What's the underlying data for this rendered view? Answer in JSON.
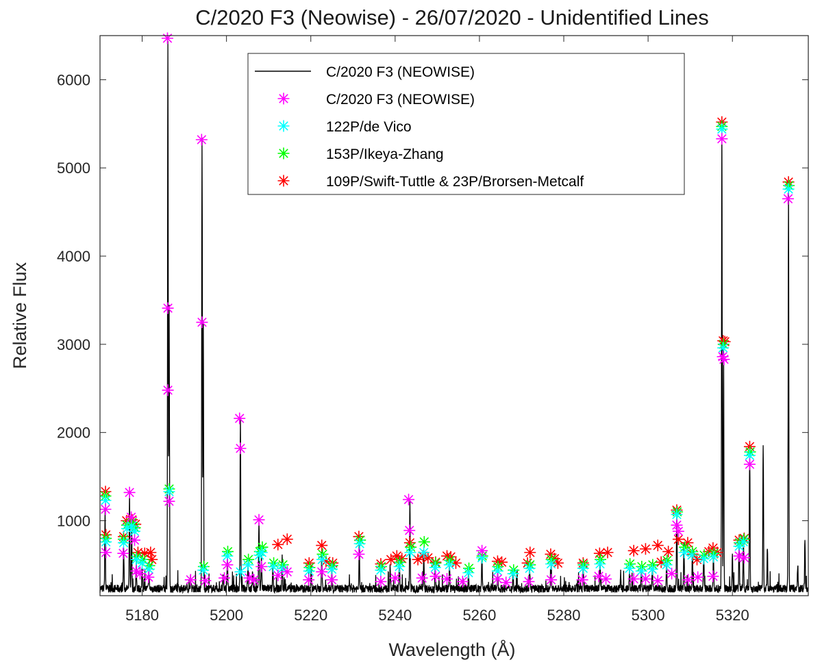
{
  "chart_data": {
    "type": "line",
    "title": "C/2020 F3 (Neowise) - 26/07/2020 - Unidentified Lines",
    "xlabel": "Wavelength (Å)",
    "ylabel": "Relative Flux",
    "xlim": [
      5170,
      5338
    ],
    "ylim": [
      150,
      6500
    ],
    "xticks": [
      5180,
      5200,
      5220,
      5240,
      5260,
      5280,
      5300,
      5320
    ],
    "yticks": [
      1000,
      2000,
      3000,
      4000,
      5000,
      6000
    ],
    "legend_position": "top-center",
    "spectrum": {
      "name": "C/2020 F3 (NEOWISE)",
      "color": "#000000",
      "baseline": 230,
      "peaks": [
        [
          5171.2,
          1100
        ],
        [
          5175.6,
          700
        ],
        [
          5177.0,
          1300
        ],
        [
          5177.5,
          900
        ],
        [
          5178.6,
          560
        ],
        [
          5180.0,
          460
        ],
        [
          5181.6,
          380
        ],
        [
          5186.1,
          6470
        ],
        [
          5186.4,
          3400
        ],
        [
          5191.5,
          340
        ],
        [
          5194.2,
          5310
        ],
        [
          5194.5,
          3240
        ],
        [
          5199.2,
          360
        ],
        [
          5200.2,
          620
        ],
        [
          5203.3,
          2150
        ],
        [
          5205.1,
          520
        ],
        [
          5206.2,
          430
        ],
        [
          5207.7,
          1000
        ],
        [
          5208.3,
          620
        ],
        [
          5211.0,
          500
        ],
        [
          5213.2,
          600
        ],
        [
          5220.1,
          460
        ],
        [
          5222.6,
          640
        ],
        [
          5225.0,
          420
        ],
        [
          5231.5,
          780
        ],
        [
          5238.8,
          460
        ],
        [
          5241.0,
          560
        ],
        [
          5243.5,
          1230
        ],
        [
          5246.8,
          650
        ],
        [
          5249.5,
          520
        ],
        [
          5252.9,
          560
        ],
        [
          5257.4,
          440
        ],
        [
          5260.6,
          610
        ],
        [
          5264.3,
          480
        ],
        [
          5268.0,
          420
        ],
        [
          5271.9,
          480
        ],
        [
          5277.0,
          560
        ],
        [
          5284.6,
          480
        ],
        [
          5288.6,
          560
        ],
        [
          5293.5,
          420
        ],
        [
          5295.6,
          460
        ],
        [
          5298.4,
          470
        ],
        [
          5301.0,
          520
        ],
        [
          5304.4,
          560
        ],
        [
          5306.8,
          1100
        ],
        [
          5308.5,
          760
        ],
        [
          5310.5,
          640
        ],
        [
          5313.2,
          620
        ],
        [
          5315.5,
          640
        ],
        [
          5317.5,
          5510
        ],
        [
          5317.9,
          3040
        ],
        [
          5320.0,
          620
        ],
        [
          5321.6,
          770
        ],
        [
          5322.6,
          800
        ],
        [
          5324.1,
          1800
        ],
        [
          5327.3,
          1900
        ],
        [
          5328.3,
          720
        ],
        [
          5333.3,
          4820
        ],
        [
          5335.5,
          520
        ],
        [
          5337.2,
          800
        ]
      ]
    },
    "series": [
      {
        "name": "C/2020 F3 (NEOWISE)",
        "color": "#ff00ff",
        "points": [
          [
            5171.3,
            1130
          ],
          [
            5171.4,
            640
          ],
          [
            5175.5,
            630
          ],
          [
            5177.0,
            1320
          ],
          [
            5177.4,
            1040
          ],
          [
            5178.2,
            780
          ],
          [
            5178.6,
            430
          ],
          [
            5179.5,
            400
          ],
          [
            5181.5,
            360
          ],
          [
            5186.0,
            6470
          ],
          [
            5186.1,
            3410
          ],
          [
            5186.1,
            2480
          ],
          [
            5186.4,
            1220
          ],
          [
            5191.5,
            330
          ],
          [
            5194.1,
            5320
          ],
          [
            5194.2,
            3250
          ],
          [
            5195.0,
            320
          ],
          [
            5199.5,
            350
          ],
          [
            5200.2,
            500
          ],
          [
            5203.1,
            2160
          ],
          [
            5203.3,
            1820
          ],
          [
            5205.4,
            350
          ],
          [
            5206.5,
            330
          ],
          [
            5207.7,
            1010
          ],
          [
            5208.3,
            480
          ],
          [
            5212.2,
            380
          ],
          [
            5214.4,
            420
          ],
          [
            5219.5,
            330
          ],
          [
            5222.6,
            420
          ],
          [
            5225.0,
            330
          ],
          [
            5231.4,
            620
          ],
          [
            5236.6,
            310
          ],
          [
            5240.0,
            350
          ],
          [
            5243.2,
            1240
          ],
          [
            5243.4,
            890
          ],
          [
            5246.4,
            350
          ],
          [
            5249.6,
            370
          ],
          [
            5252.3,
            340
          ],
          [
            5256.0,
            310
          ],
          [
            5260.6,
            660
          ],
          [
            5264.3,
            340
          ],
          [
            5266.3,
            300
          ],
          [
            5271.7,
            310
          ],
          [
            5277.0,
            330
          ],
          [
            5284.4,
            330
          ],
          [
            5288.3,
            370
          ],
          [
            5290.0,
            340
          ],
          [
            5296.6,
            340
          ],
          [
            5299.4,
            340
          ],
          [
            5302.3,
            320
          ],
          [
            5305.6,
            400
          ],
          [
            5306.8,
            950
          ],
          [
            5307.2,
            880
          ],
          [
            5309.5,
            330
          ],
          [
            5311.8,
            360
          ],
          [
            5315.4,
            370
          ],
          [
            5317.5,
            5330
          ],
          [
            5317.7,
            2860
          ],
          [
            5318.0,
            2830
          ],
          [
            5321.6,
            600
          ],
          [
            5322.8,
            580
          ],
          [
            5324.1,
            1640
          ],
          [
            5333.2,
            4650
          ]
        ]
      },
      {
        "name": "122P/de Vico",
        "color": "#00ffff",
        "points": [
          [
            5171.3,
            1230
          ],
          [
            5171.4,
            760
          ],
          [
            5175.6,
            750
          ],
          [
            5176.4,
            910
          ],
          [
            5177.5,
            940
          ],
          [
            5178.2,
            880
          ],
          [
            5178.6,
            560
          ],
          [
            5180.0,
            520
          ],
          [
            5181.6,
            450
          ],
          [
            5186.4,
            1330
          ],
          [
            5194.5,
            440
          ],
          [
            5200.2,
            600
          ],
          [
            5203.3,
            420
          ],
          [
            5205.1,
            500
          ],
          [
            5207.8,
            610
          ],
          [
            5208.4,
            640
          ],
          [
            5211.1,
            480
          ],
          [
            5213.3,
            460
          ],
          [
            5219.6,
            430
          ],
          [
            5222.7,
            560
          ],
          [
            5225.0,
            450
          ],
          [
            5231.6,
            740
          ],
          [
            5236.6,
            440
          ],
          [
            5241.0,
            480
          ],
          [
            5243.6,
            640
          ],
          [
            5246.8,
            640
          ],
          [
            5249.5,
            470
          ],
          [
            5252.9,
            500
          ],
          [
            5257.4,
            410
          ],
          [
            5260.6,
            580
          ],
          [
            5264.3,
            430
          ],
          [
            5268.0,
            400
          ],
          [
            5271.9,
            460
          ],
          [
            5277.0,
            510
          ],
          [
            5284.6,
            460
          ],
          [
            5288.6,
            510
          ],
          [
            5295.6,
            460
          ],
          [
            5298.4,
            430
          ],
          [
            5301.0,
            450
          ],
          [
            5304.4,
            500
          ],
          [
            5306.8,
            1070
          ],
          [
            5308.6,
            640
          ],
          [
            5310.4,
            610
          ],
          [
            5313.2,
            570
          ],
          [
            5315.5,
            590
          ],
          [
            5317.5,
            5440
          ],
          [
            5317.8,
            2960
          ],
          [
            5321.6,
            710
          ],
          [
            5322.6,
            760
          ],
          [
            5324.1,
            1740
          ],
          [
            5333.3,
            4760
          ]
        ]
      },
      {
        "name": "153P/Ikeya-Zhang",
        "color": "#00ff00",
        "points": [
          [
            5171.3,
            1280
          ],
          [
            5171.4,
            800
          ],
          [
            5175.6,
            790
          ],
          [
            5176.4,
            950
          ],
          [
            5177.6,
            980
          ],
          [
            5178.3,
            920
          ],
          [
            5178.7,
            590
          ],
          [
            5180.1,
            560
          ],
          [
            5181.7,
            490
          ],
          [
            5186.4,
            1360
          ],
          [
            5194.6,
            480
          ],
          [
            5200.3,
            650
          ],
          [
            5205.2,
            560
          ],
          [
            5207.9,
            650
          ],
          [
            5208.5,
            700
          ],
          [
            5211.2,
            520
          ],
          [
            5213.4,
            500
          ],
          [
            5219.7,
            470
          ],
          [
            5222.8,
            620
          ],
          [
            5225.1,
            490
          ],
          [
            5231.7,
            780
          ],
          [
            5236.7,
            480
          ],
          [
            5241.1,
            530
          ],
          [
            5243.7,
            700
          ],
          [
            5246.9,
            760
          ],
          [
            5249.6,
            520
          ],
          [
            5253.0,
            550
          ],
          [
            5257.5,
            460
          ],
          [
            5260.7,
            600
          ],
          [
            5264.4,
            480
          ],
          [
            5268.1,
            440
          ],
          [
            5272.0,
            500
          ],
          [
            5277.1,
            560
          ],
          [
            5284.7,
            500
          ],
          [
            5288.7,
            560
          ],
          [
            5295.7,
            510
          ],
          [
            5298.5,
            480
          ],
          [
            5301.1,
            500
          ],
          [
            5304.5,
            550
          ],
          [
            5306.9,
            1100
          ],
          [
            5308.7,
            700
          ],
          [
            5310.5,
            650
          ],
          [
            5313.3,
            610
          ],
          [
            5315.6,
            630
          ],
          [
            5317.5,
            5470
          ],
          [
            5317.9,
            3000
          ],
          [
            5321.7,
            750
          ],
          [
            5322.7,
            790
          ],
          [
            5324.2,
            1780
          ],
          [
            5333.4,
            4800
          ]
        ]
      },
      {
        "name": "109P/Swift-Tuttle & 23P/Brorsen-Metcalf",
        "color": "#ff0000",
        "points": [
          [
            5171.3,
            1330
          ],
          [
            5171.4,
            840
          ],
          [
            5175.6,
            820
          ],
          [
            5176.3,
            1000
          ],
          [
            5177.6,
            1010
          ],
          [
            5178.4,
            960
          ],
          [
            5179.0,
            640
          ],
          [
            5180.6,
            630
          ],
          [
            5182.0,
            640
          ],
          [
            5182.3,
            560
          ],
          [
            5212.2,
            730
          ],
          [
            5214.4,
            790
          ],
          [
            5219.6,
            520
          ],
          [
            5222.6,
            720
          ],
          [
            5223.6,
            540
          ],
          [
            5225.2,
            520
          ],
          [
            5231.4,
            820
          ],
          [
            5236.6,
            510
          ],
          [
            5239.0,
            560
          ],
          [
            5240.4,
            600
          ],
          [
            5241.6,
            570
          ],
          [
            5243.5,
            750
          ],
          [
            5245.4,
            560
          ],
          [
            5246.6,
            600
          ],
          [
            5247.8,
            580
          ],
          [
            5249.6,
            530
          ],
          [
            5252.3,
            600
          ],
          [
            5253.2,
            590
          ],
          [
            5254.4,
            520
          ],
          [
            5264.3,
            540
          ],
          [
            5265.3,
            530
          ],
          [
            5271.4,
            520
          ],
          [
            5272.0,
            640
          ],
          [
            5276.9,
            620
          ],
          [
            5277.8,
            570
          ],
          [
            5278.6,
            520
          ],
          [
            5284.6,
            520
          ],
          [
            5288.5,
            630
          ],
          [
            5290.4,
            640
          ],
          [
            5296.6,
            660
          ],
          [
            5299.4,
            680
          ],
          [
            5302.3,
            720
          ],
          [
            5303.1,
            530
          ],
          [
            5304.8,
            650
          ],
          [
            5306.8,
            1120
          ],
          [
            5307.2,
            790
          ],
          [
            5309.4,
            750
          ],
          [
            5310.6,
            620
          ],
          [
            5311.6,
            560
          ],
          [
            5314.4,
            650
          ],
          [
            5315.4,
            690
          ],
          [
            5316.4,
            640
          ],
          [
            5317.5,
            5520
          ],
          [
            5317.8,
            3040
          ],
          [
            5318.2,
            3030
          ],
          [
            5321.6,
            780
          ],
          [
            5322.8,
            800
          ],
          [
            5324.1,
            1840
          ],
          [
            5333.3,
            4840
          ]
        ]
      }
    ]
  }
}
